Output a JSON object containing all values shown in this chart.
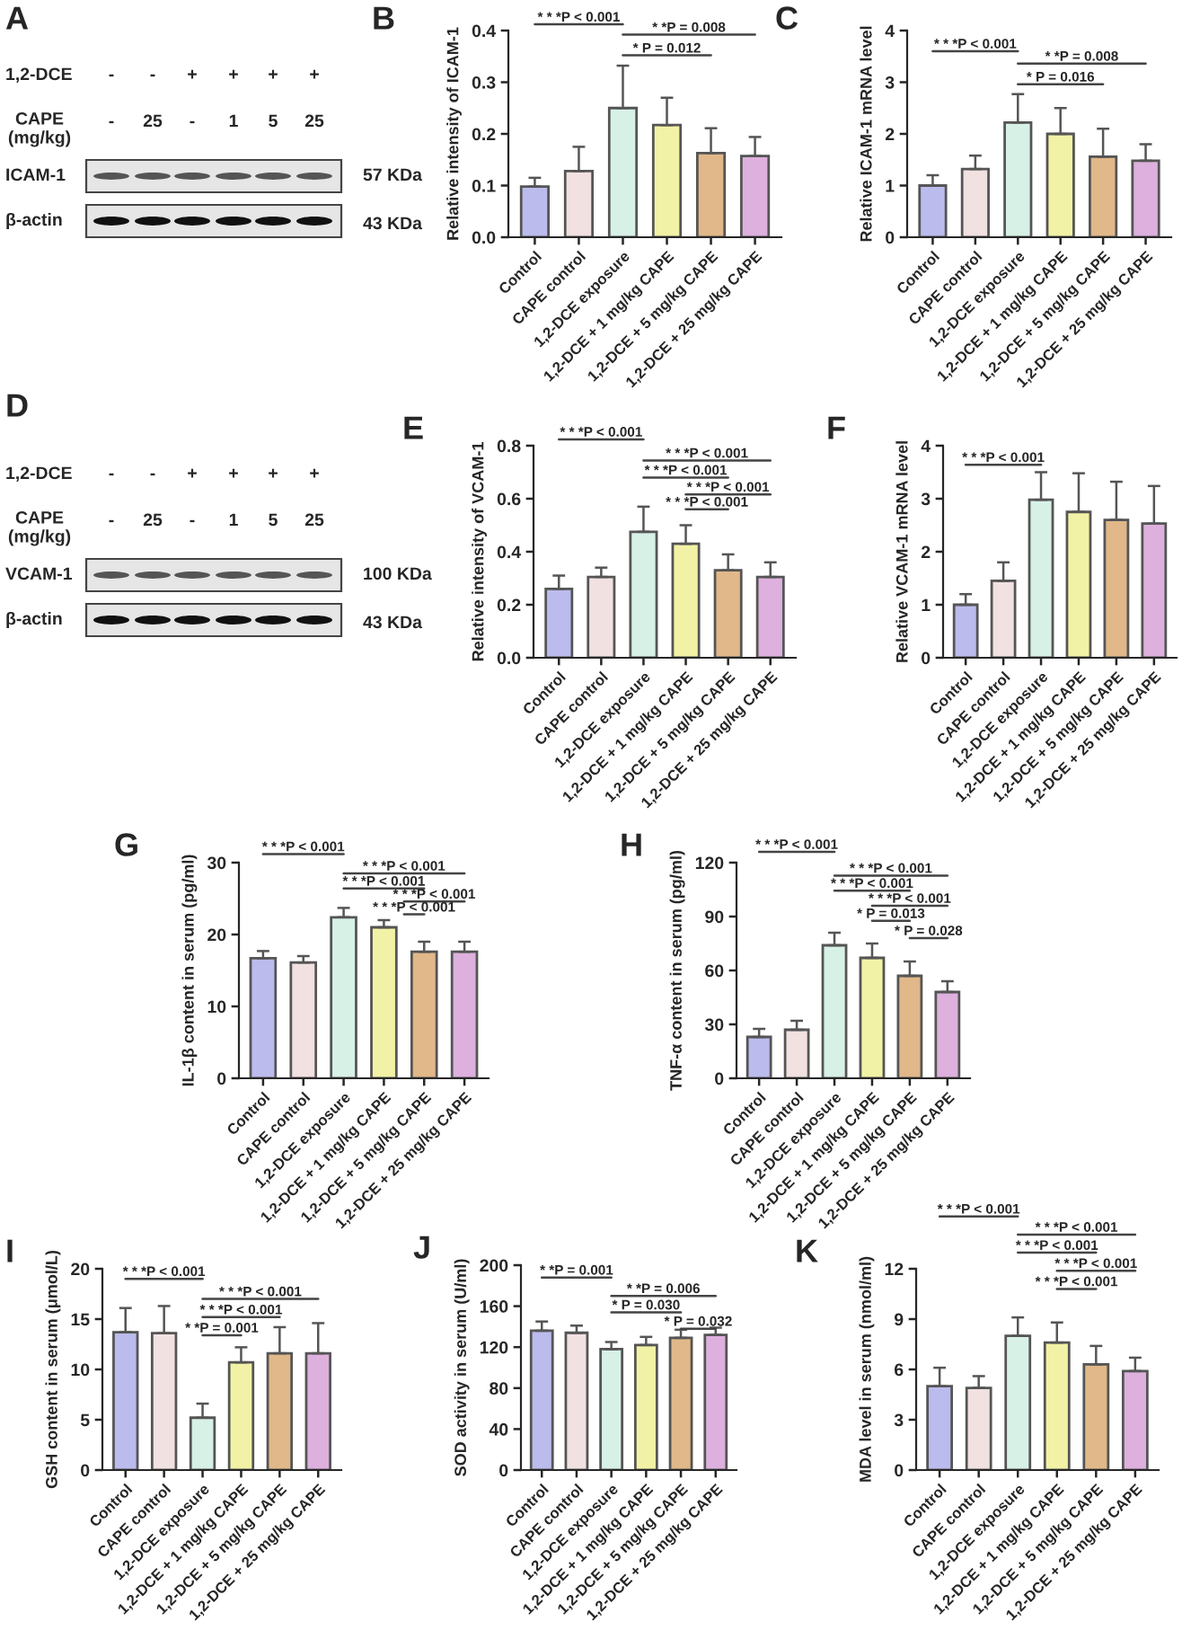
{
  "chart_data": [
    {
      "type": "other",
      "title": "A",
      "annotations": [
        "1,2-DCE",
        "-",
        "-",
        "+",
        "+",
        "+",
        "+",
        "CAPE\n(mg/kg)",
        "-",
        "25",
        "-",
        "1",
        "5",
        "25",
        "ICAM-1",
        "57 KDa",
        "β-actin",
        "43 KDa"
      ]
    },
    {
      "type": "bar",
      "title": "B",
      "ylabel": "Relative intensity of ICAM-1",
      "categories": [
        "Control",
        "CAPE control",
        "1,2-DCE exposure",
        "1,2-DCE + 1 mg/kg CAPE",
        "1,2-DCE + 5 mg/kg CAPE",
        "1,2-DCE + 25 mg/kg CAPE"
      ],
      "values": [
        0.098,
        0.128,
        0.25,
        0.217,
        0.163,
        0.157
      ],
      "errors": [
        0.017,
        0.047,
        0.082,
        0.053,
        0.048,
        0.037
      ],
      "colors": [
        "#b3b3f5",
        "#f5dede",
        "#d4f5e6",
        "#ffff99",
        "#f0b97a",
        "#e4a8e6"
      ],
      "ylim": [
        0,
        0.4
      ],
      "yticks": [
        {
          "value": 0,
          "label": "0.0"
        },
        0.1,
        0.2,
        0.3,
        0.4
      ],
      "annotations": [
        "* * *P < 0.001",
        "* *P = 0.008",
        "* P = 0.012"
      ]
    },
    {
      "type": "bar",
      "title": "C",
      "ylabel": "Relative ICAM-1 mRNA level",
      "categories": [
        "Control",
        "CAPE control",
        "1,2-DCE exposure",
        "1,2-DCE + 1 mg/kg CAPE",
        "1,2-DCE + 5 mg/kg CAPE",
        "1,2-DCE + 25 mg/kg CAPE"
      ],
      "values": [
        1.0,
        1.32,
        2.22,
        2.0,
        1.56,
        1.48
      ],
      "errors": [
        0.2,
        0.26,
        0.55,
        0.5,
        0.54,
        0.32
      ],
      "colors": [
        "#b3b3f5",
        "#f5dede",
        "#d4f5e6",
        "#ffff99",
        "#f0b97a",
        "#e4a8e6"
      ],
      "ylim": [
        0,
        4
      ],
      "yticks": [
        0,
        1,
        2,
        3,
        4
      ],
      "annotations": [
        "* * *P < 0.001",
        "* *P = 0.008",
        "* P = 0.016"
      ]
    },
    {
      "type": "other",
      "title": "D",
      "annotations": [
        "1,2-DCE",
        "-",
        "-",
        "+",
        "+",
        "+",
        "+",
        "CAPE\n(mg/kg)",
        "-",
        "25",
        "-",
        "1",
        "5",
        "25",
        "VCAM-1",
        "100 KDa",
        "β-actin",
        "43 KDa"
      ]
    },
    {
      "type": "bar",
      "title": "E",
      "ylabel": "Relative intensity of VCAM-1",
      "categories": [
        "Control",
        "CAPE control",
        "1,2-DCE exposure",
        "1,2-DCE + 1 mg/kg CAPE",
        "1,2-DCE + 5 mg/kg CAPE",
        "1,2-DCE + 25 mg/kg CAPE"
      ],
      "values": [
        0.26,
        0.305,
        0.475,
        0.43,
        0.33,
        0.305
      ],
      "errors": [
        0.05,
        0.035,
        0.095,
        0.07,
        0.06,
        0.055
      ],
      "colors": [
        "#b3b3f5",
        "#f5dede",
        "#d4f5e6",
        "#ffff99",
        "#f0b97a",
        "#e4a8e6"
      ],
      "ylim": [
        0,
        0.8
      ],
      "yticks": [
        {
          "value": 0,
          "label": "0.0"
        },
        0.2,
        0.4,
        0.6,
        0.8
      ],
      "annotations": [
        "* * *P < 0.001",
        "* * *P < 0.001",
        "* * *P < 0.001",
        "* * *P < 0.001",
        "* * *P < 0.001"
      ]
    },
    {
      "type": "bar",
      "title": "F",
      "ylabel": "Relative VCAM-1 mRNA level",
      "categories": [
        "Control",
        "CAPE control",
        "1,2-DCE exposure",
        "1,2-DCE + 1 mg/kg CAPE",
        "1,2-DCE + 5 mg/kg CAPE",
        "1,2-DCE + 25 mg/kg CAPE"
      ],
      "values": [
        1.0,
        1.45,
        2.98,
        2.75,
        2.6,
        2.53
      ],
      "errors": [
        0.2,
        0.35,
        0.52,
        0.73,
        0.72,
        0.71
      ],
      "colors": [
        "#b3b3f5",
        "#f5dede",
        "#d4f5e6",
        "#ffff99",
        "#f0b97a",
        "#e4a8e6"
      ],
      "ylim": [
        0,
        4
      ],
      "yticks": [
        0,
        1,
        2,
        3,
        4
      ],
      "annotations": [
        "* * *P < 0.001"
      ]
    },
    {
      "type": "bar",
      "title": "G",
      "ylabel": "IL-1β content in serum (pg/ml)",
      "categories": [
        "Control",
        "CAPE control",
        "1,2-DCE exposure",
        "1,2-DCE + 1 mg/kg CAPE",
        "1,2-DCE + 5 mg/kg CAPE",
        "1,2-DCE + 25 mg/kg CAPE"
      ],
      "values": [
        16.7,
        16.1,
        22.4,
        21.0,
        17.6,
        17.6
      ],
      "errors": [
        1.0,
        0.9,
        1.3,
        1.0,
        1.4,
        1.4
      ],
      "colors": [
        "#b3b3f5",
        "#f5dede",
        "#d4f5e6",
        "#ffff99",
        "#f0b97a",
        "#e4a8e6"
      ],
      "ylim": [
        0,
        30
      ],
      "yticks": [
        0,
        10,
        20,
        30
      ],
      "annotations": [
        "* * *P < 0.001",
        "* * *P < 0.001",
        "* * *P < 0.001",
        "* * *P < 0.001",
        "* * *P < 0.001"
      ]
    },
    {
      "type": "bar",
      "title": "H",
      "ylabel": "TNF-α content in serum (pg/ml)",
      "categories": [
        "Control",
        "CAPE control",
        "1,2-DCE exposure",
        "1,2-DCE + 1 mg/kg CAPE",
        "1,2-DCE + 5 mg/kg CAPE",
        "1,2-DCE + 25 mg/kg CAPE"
      ],
      "values": [
        23,
        27,
        74,
        67,
        57,
        48
      ],
      "errors": [
        4.5,
        5,
        7,
        8,
        8,
        6
      ],
      "colors": [
        "#b3b3f5",
        "#f5dede",
        "#d4f5e6",
        "#ffff99",
        "#f0b97a",
        "#e4a8e6"
      ],
      "ylim": [
        0,
        120
      ],
      "yticks": [
        0,
        30,
        60,
        90,
        120
      ],
      "annotations": [
        "* * *P < 0.001",
        "* * *P < 0.001",
        "* * *P < 0.001",
        "* * *P < 0.001",
        "* P = 0.013",
        "* P = 0.028"
      ]
    },
    {
      "type": "bar",
      "title": "I",
      "ylabel": "GSH content in serum (μmol/L)",
      "categories": [
        "Control",
        "CAPE control",
        "1,2-DCE exposure",
        "1,2-DCE + 1 mg/kg CAPE",
        "1,2-DCE + 5 mg/kg CAPE",
        "1,2-DCE + 25 mg/kg CAPE"
      ],
      "values": [
        13.7,
        13.6,
        5.2,
        10.7,
        11.6,
        11.6
      ],
      "errors": [
        2.4,
        2.7,
        1.4,
        1.5,
        2.6,
        3.0
      ],
      "colors": [
        "#b3b3f5",
        "#f5dede",
        "#d4f5e6",
        "#ffff99",
        "#f0b97a",
        "#e4a8e6"
      ],
      "ylim": [
        0,
        20
      ],
      "yticks": [
        0,
        5,
        10,
        15,
        20
      ],
      "annotations": [
        "* * *P < 0.001",
        "* * *P < 0.001",
        "* * *P < 0.001",
        "* *P = 0.001"
      ]
    },
    {
      "type": "bar",
      "title": "J",
      "ylabel": "SOD activity in serum (U/ml)",
      "categories": [
        "Control",
        "CAPE control",
        "1,2-DCE exposure",
        "1,2-DCE + 1 mg/kg CAPE",
        "1,2-DCE + 5 mg/kg CAPE",
        "1,2-DCE + 25 mg/kg CAPE"
      ],
      "values": [
        136,
        134,
        118,
        122,
        129,
        132
      ],
      "errors": [
        9,
        7,
        7,
        8,
        8,
        7
      ],
      "colors": [
        "#b3b3f5",
        "#f5dede",
        "#d4f5e6",
        "#ffff99",
        "#f0b97a",
        "#e4a8e6"
      ],
      "ylim": [
        0,
        200
      ],
      "yticks": [
        0,
        40,
        80,
        120,
        160,
        200
      ],
      "annotations": [
        "* *P = 0.001",
        "* *P = 0.006",
        "* P = 0.030",
        "* P = 0.032"
      ]
    },
    {
      "type": "bar",
      "title": "K",
      "ylabel": "MDA level in serum (nmol/ml)",
      "categories": [
        "Control",
        "CAPE control",
        "1,2-DCE exposure",
        "1,2-DCE + 1 mg/kg CAPE",
        "1,2-DCE + 5 mg/kg CAPE",
        "1,2-DCE + 25 mg/kg CAPE"
      ],
      "values": [
        5.0,
        4.9,
        8.0,
        7.6,
        6.3,
        5.9
      ],
      "errors": [
        1.1,
        0.7,
        1.1,
        1.2,
        1.1,
        0.8
      ],
      "colors": [
        "#b3b3f5",
        "#f5dede",
        "#d4f5e6",
        "#ffff99",
        "#f0b97a",
        "#e4a8e6"
      ],
      "ylim": [
        0,
        12
      ],
      "yticks": [
        0,
        3,
        6,
        9,
        12
      ],
      "annotations": [
        "* * *P < 0.001",
        "* * *P < 0.001",
        "* * *P < 0.001",
        "* * *P < 0.001",
        "* * *P < 0.001"
      ]
    }
  ]
}
